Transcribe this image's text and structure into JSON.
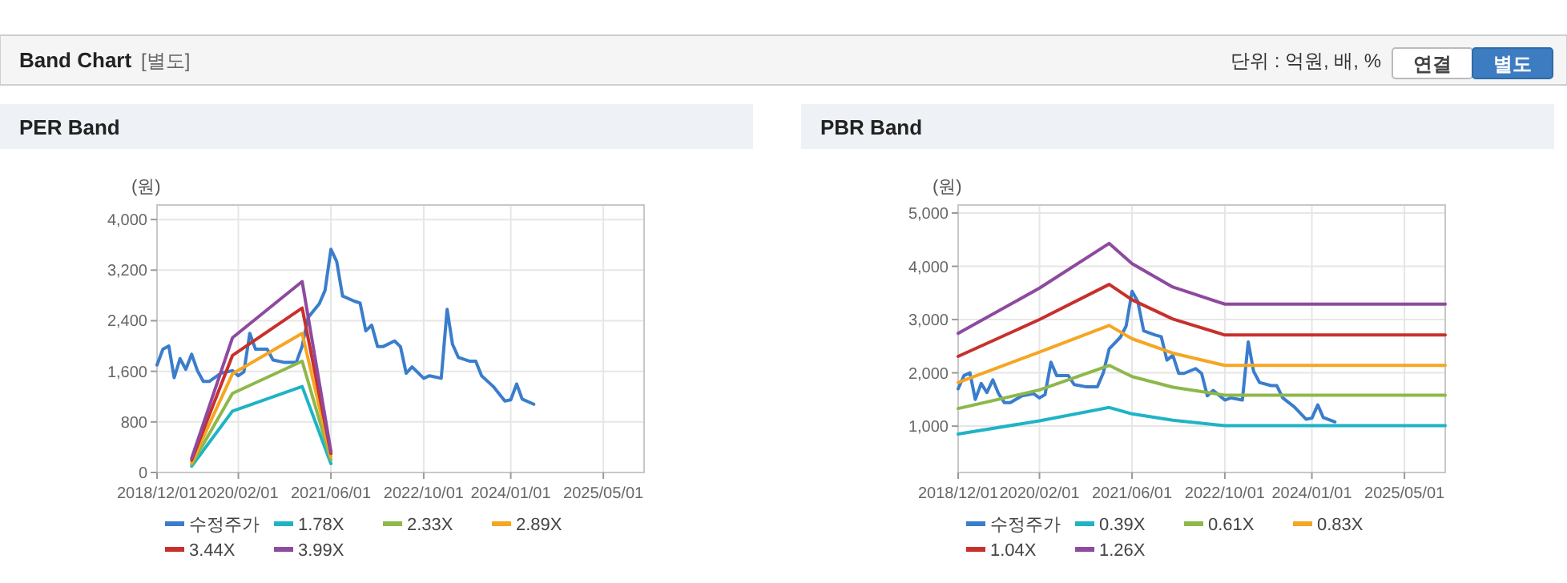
{
  "chart_data": [
    {
      "type": "other",
      "title": "Band Chart",
      "annotations": [
        "[별도]",
        "단위 : 억원, 배, %",
        "연결",
        "별도"
      ]
    },
    {
      "type": "line",
      "title": "PER Band",
      "ylabel": "(원)",
      "xlim": [
        "2018-12-01",
        "2025-12-01"
      ],
      "ylim": [
        0,
        4230
      ],
      "xticks": [
        {
          "value": "2018-12-01",
          "label": "2018/12/01"
        },
        {
          "value": "2020-02-01",
          "label": "2020/02/01"
        },
        {
          "value": "2021-06-01",
          "label": "2021/06/01"
        },
        {
          "value": "2022-10-01",
          "label": "2022/10/01"
        },
        {
          "value": "2024-01-01",
          "label": "2024/01/01"
        },
        {
          "value": "2025-05-01",
          "label": "2025/05/01"
        }
      ],
      "yticks": [
        0,
        800,
        {
          "value": 1600,
          "label": "1,600"
        },
        {
          "value": 2400,
          "label": "2,400"
        },
        {
          "value": 3200,
          "label": "3,200"
        },
        {
          "value": 4000,
          "label": "4,000"
        }
      ],
      "grid": true,
      "legend": "bottom",
      "series": [
        {
          "name": "수정주가",
          "color": "#3a7dcc",
          "x": [
            "2018-12",
            "2019-01",
            "2019-02",
            "2019-03",
            "2019-04",
            "2019-05",
            "2019-06",
            "2019-07",
            "2019-08",
            "2019-09",
            "2019-11",
            "2020-01",
            "2020-02",
            "2020-03",
            "2020-04",
            "2020-05",
            "2020-07",
            "2020-08",
            "2020-10",
            "2020-12",
            "2021-01",
            "2021-02",
            "2021-04",
            "2021-05",
            "2021-06",
            "2021-07",
            "2021-08",
            "2021-10",
            "2021-11",
            "2021-12",
            "2022-01",
            "2022-02",
            "2022-03",
            "2022-05",
            "2022-06",
            "2022-07",
            "2022-08",
            "2022-10",
            "2022-11",
            "2023-01",
            "2023-02",
            "2023-03",
            "2023-04",
            "2023-06",
            "2023-07",
            "2023-08",
            "2023-10",
            "2023-12",
            "2024-01",
            "2024-02",
            "2024-03",
            "2024-05"
          ],
          "values": [
            1700,
            1950,
            2000,
            1500,
            1800,
            1630,
            1870,
            1610,
            1440,
            1440,
            1570,
            1610,
            1530,
            1590,
            2200,
            1950,
            1950,
            1780,
            1740,
            1740,
            2000,
            2450,
            2670,
            2880,
            3530,
            3340,
            2790,
            2710,
            2680,
            2240,
            2330,
            1990,
            1990,
            2080,
            1990,
            1570,
            1670,
            1490,
            1530,
            1490,
            2580,
            2030,
            1820,
            1760,
            1760,
            1530,
            1360,
            1130,
            1150,
            1400,
            1160,
            1080
          ]
        },
        {
          "name": "1.78X",
          "color": "#1fb3c6",
          "x": [
            "2019-06",
            "2020-01",
            "2021-01",
            "2021-06"
          ],
          "values": [
            100,
            970,
            1360,
            140
          ]
        },
        {
          "name": "2.33X",
          "color": "#8db84a",
          "x": [
            "2019-06",
            "2020-01",
            "2021-01",
            "2021-06"
          ],
          "values": [
            130,
            1250,
            1760,
            200
          ]
        },
        {
          "name": "2.89X",
          "color": "#f5a623",
          "x": [
            "2019-06",
            "2020-01",
            "2021-01",
            "2021-06"
          ],
          "values": [
            160,
            1560,
            2200,
            250
          ]
        },
        {
          "name": "3.44X",
          "color": "#c8302c",
          "x": [
            "2019-06",
            "2020-01",
            "2021-01",
            "2021-06"
          ],
          "values": [
            195,
            1850,
            2600,
            300
          ]
        },
        {
          "name": "3.99X",
          "color": "#8e4a9e",
          "x": [
            "2019-06",
            "2020-01",
            "2021-01",
            "2021-06"
          ],
          "values": [
            225,
            2130,
            3020,
            330
          ]
        }
      ]
    },
    {
      "type": "line",
      "title": "PBR Band",
      "ylabel": "(원)",
      "xlim": [
        "2018-12-01",
        "2025-12-01"
      ],
      "ylim": [
        130,
        5150
      ],
      "xticks": [
        {
          "value": "2018-12-01",
          "label": "2018/12/01"
        },
        {
          "value": "2020-02-01",
          "label": "2020/02/01"
        },
        {
          "value": "2021-06-01",
          "label": "2021/06/01"
        },
        {
          "value": "2022-10-01",
          "label": "2022/10/01"
        },
        {
          "value": "2024-01-01",
          "label": "2024/01/01"
        },
        {
          "value": "2025-05-01",
          "label": "2025/05/01"
        }
      ],
      "yticks": [
        {
          "value": 1000,
          "label": "1,000"
        },
        {
          "value": 2000,
          "label": "2,000"
        },
        {
          "value": 3000,
          "label": "3,000"
        },
        {
          "value": 4000,
          "label": "4,000"
        },
        {
          "value": 5000,
          "label": "5,000"
        }
      ],
      "grid": true,
      "legend": "bottom",
      "series": [
        {
          "name": "수정주가",
          "color": "#3a7dcc",
          "x": [
            "2018-12",
            "2019-01",
            "2019-02",
            "2019-03",
            "2019-04",
            "2019-05",
            "2019-06",
            "2019-07",
            "2019-08",
            "2019-09",
            "2019-11",
            "2020-01",
            "2020-02",
            "2020-03",
            "2020-04",
            "2020-05",
            "2020-07",
            "2020-08",
            "2020-10",
            "2020-12",
            "2021-01",
            "2021-02",
            "2021-04",
            "2021-05",
            "2021-06",
            "2021-07",
            "2021-08",
            "2021-10",
            "2021-11",
            "2021-12",
            "2022-01",
            "2022-02",
            "2022-03",
            "2022-05",
            "2022-06",
            "2022-07",
            "2022-08",
            "2022-10",
            "2022-11",
            "2023-01",
            "2023-02",
            "2023-03",
            "2023-04",
            "2023-06",
            "2023-07",
            "2023-08",
            "2023-10",
            "2023-12",
            "2024-01",
            "2024-02",
            "2024-03",
            "2024-05"
          ],
          "values": [
            1700,
            1950,
            2000,
            1500,
            1800,
            1630,
            1870,
            1610,
            1440,
            1440,
            1570,
            1610,
            1530,
            1590,
            2200,
            1950,
            1950,
            1780,
            1740,
            1740,
            2000,
            2450,
            2670,
            2880,
            3530,
            3340,
            2790,
            2710,
            2680,
            2240,
            2330,
            1990,
            1990,
            2080,
            1990,
            1570,
            1670,
            1490,
            1530,
            1490,
            2580,
            2030,
            1820,
            1760,
            1760,
            1530,
            1360,
            1130,
            1150,
            1400,
            1160,
            1080
          ]
        },
        {
          "name": "0.39X",
          "color": "#1fb3c6",
          "x": [
            "2018-12",
            "2020-02",
            "2021-02",
            "2021-06",
            "2022-01",
            "2022-10",
            "2025-12"
          ],
          "values": [
            850,
            1100,
            1350,
            1230,
            1110,
            1010,
            1010
          ]
        },
        {
          "name": "0.61X",
          "color": "#8db84a",
          "x": [
            "2018-12",
            "2020-02",
            "2021-02",
            "2021-06",
            "2022-01",
            "2022-10",
            "2025-12"
          ],
          "values": [
            1330,
            1680,
            2140,
            1930,
            1730,
            1580,
            1580
          ]
        },
        {
          "name": "0.83X",
          "color": "#f5a623",
          "x": [
            "2018-12",
            "2020-02",
            "2021-02",
            "2021-06",
            "2022-01",
            "2022-10",
            "2025-12"
          ],
          "values": [
            1820,
            2390,
            2890,
            2640,
            2370,
            2140,
            2140
          ]
        },
        {
          "name": "1.04X",
          "color": "#c8302c",
          "x": [
            "2018-12",
            "2020-02",
            "2021-02",
            "2021-06",
            "2022-01",
            "2022-10",
            "2025-12"
          ],
          "values": [
            2310,
            3000,
            3660,
            3370,
            3010,
            2710,
            2710
          ]
        },
        {
          "name": "1.26X",
          "color": "#8e4a9e",
          "x": [
            "2018-12",
            "2020-02",
            "2021-02",
            "2021-06",
            "2022-01",
            "2022-10",
            "2025-12"
          ],
          "values": [
            2740,
            3590,
            4430,
            4050,
            3610,
            3290,
            3290
          ]
        }
      ]
    }
  ]
}
